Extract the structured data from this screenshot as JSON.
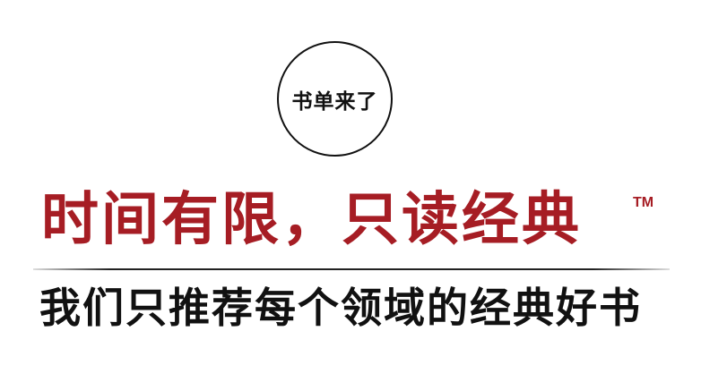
{
  "badge": {
    "text": "书单来了"
  },
  "headline": {
    "text": "时间有限，只读经典",
    "trademark": "TM",
    "color": "#a61d24"
  },
  "tagline": {
    "text": "我们只推荐每个领域的经典好书",
    "color": "#111111"
  },
  "colors": {
    "background": "#ffffff",
    "rule": "#222222"
  }
}
